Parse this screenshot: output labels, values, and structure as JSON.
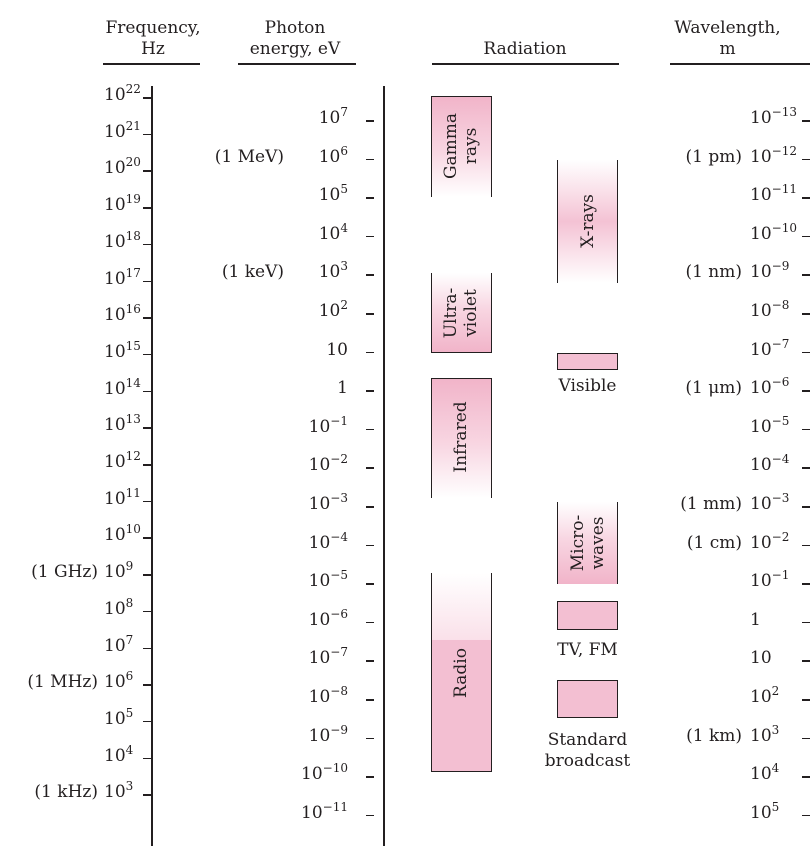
{
  "headers": {
    "frequency": [
      "Frequency,",
      "Hz"
    ],
    "photon_energy": [
      "Photon",
      "energy, eV"
    ],
    "radiation": [
      "Radiation"
    ],
    "wavelength": [
      "Wavelength,",
      "m"
    ]
  },
  "frequency_scale": [
    {
      "base": "10",
      "exp": "22",
      "note": ""
    },
    {
      "base": "10",
      "exp": "21",
      "note": ""
    },
    {
      "base": "10",
      "exp": "20",
      "note": ""
    },
    {
      "base": "10",
      "exp": "19",
      "note": ""
    },
    {
      "base": "10",
      "exp": "18",
      "note": ""
    },
    {
      "base": "10",
      "exp": "17",
      "note": ""
    },
    {
      "base": "10",
      "exp": "16",
      "note": ""
    },
    {
      "base": "10",
      "exp": "15",
      "note": ""
    },
    {
      "base": "10",
      "exp": "14",
      "note": ""
    },
    {
      "base": "10",
      "exp": "13",
      "note": ""
    },
    {
      "base": "10",
      "exp": "12",
      "note": ""
    },
    {
      "base": "10",
      "exp": "11",
      "note": ""
    },
    {
      "base": "10",
      "exp": "10",
      "note": ""
    },
    {
      "base": "10",
      "exp": "9",
      "note": "(1 GHz)"
    },
    {
      "base": "10",
      "exp": "8",
      "note": ""
    },
    {
      "base": "10",
      "exp": "7",
      "note": ""
    },
    {
      "base": "10",
      "exp": "6",
      "note": "(1 MHz)"
    },
    {
      "base": "10",
      "exp": "5",
      "note": ""
    },
    {
      "base": "10",
      "exp": "4",
      "note": ""
    },
    {
      "base": "10",
      "exp": "3",
      "note": "(1 kHz)"
    }
  ],
  "energy_scale": [
    {
      "base": "10",
      "exp": "7",
      "note": ""
    },
    {
      "base": "10",
      "exp": "6",
      "note": "(1 MeV)"
    },
    {
      "base": "10",
      "exp": "5",
      "note": ""
    },
    {
      "base": "10",
      "exp": "4",
      "note": ""
    },
    {
      "base": "10",
      "exp": "3",
      "note": "(1 keV)"
    },
    {
      "base": "10",
      "exp": "2",
      "note": ""
    },
    {
      "base": "10",
      "exp": "",
      "note": ""
    },
    {
      "base": "1",
      "exp": "",
      "note": ""
    },
    {
      "base": "10",
      "exp": "−1",
      "note": ""
    },
    {
      "base": "10",
      "exp": "−2",
      "note": ""
    },
    {
      "base": "10",
      "exp": "−3",
      "note": ""
    },
    {
      "base": "10",
      "exp": "−4",
      "note": ""
    },
    {
      "base": "10",
      "exp": "−5",
      "note": ""
    },
    {
      "base": "10",
      "exp": "−6",
      "note": ""
    },
    {
      "base": "10",
      "exp": "−7",
      "note": ""
    },
    {
      "base": "10",
      "exp": "−8",
      "note": ""
    },
    {
      "base": "10",
      "exp": "−9",
      "note": ""
    },
    {
      "base": "10",
      "exp": "−10",
      "note": ""
    },
    {
      "base": "10",
      "exp": "−11",
      "note": ""
    }
  ],
  "wavelength_scale": [
    {
      "base": "10",
      "exp": "−13",
      "note": ""
    },
    {
      "base": "10",
      "exp": "−12",
      "note": "(1 pm)"
    },
    {
      "base": "10",
      "exp": "−11",
      "note": ""
    },
    {
      "base": "10",
      "exp": "−10",
      "note": ""
    },
    {
      "base": "10",
      "exp": "−9",
      "note": "(1 nm)"
    },
    {
      "base": "10",
      "exp": "−8",
      "note": ""
    },
    {
      "base": "10",
      "exp": "−7",
      "note": ""
    },
    {
      "base": "10",
      "exp": "−6",
      "note": "(1 μm)"
    },
    {
      "base": "10",
      "exp": "−5",
      "note": ""
    },
    {
      "base": "10",
      "exp": "−4",
      "note": ""
    },
    {
      "base": "10",
      "exp": "−3",
      "note": "(1 mm)"
    },
    {
      "base": "10",
      "exp": "−2",
      "note": "(1 cm)"
    },
    {
      "base": "10",
      "exp": "−1",
      "note": ""
    },
    {
      "base": "1",
      "exp": "",
      "note": ""
    },
    {
      "base": "10",
      "exp": "",
      "note": ""
    },
    {
      "base": "10",
      "exp": "2",
      "note": ""
    },
    {
      "base": "10",
      "exp": "3",
      "note": "(1 km)"
    },
    {
      "base": "10",
      "exp": "4",
      "note": ""
    },
    {
      "base": "10",
      "exp": "5",
      "note": ""
    }
  ],
  "radiation": {
    "gamma": [
      "Gamma",
      "rays"
    ],
    "ultraviolet": [
      "Ultra-",
      "violet"
    ],
    "infrared": [
      "Infrared"
    ],
    "radio": [
      "Radio"
    ],
    "xrays": [
      "X-rays"
    ],
    "microwaves": [
      "Micro-",
      "waves"
    ],
    "visible": "Visible",
    "tv_fm": "TV, FM",
    "standard_broadcast": [
      "Standard",
      "broadcast"
    ]
  },
  "colors": {
    "band_fill": "#f3bfd2",
    "ink": "#231f20"
  }
}
